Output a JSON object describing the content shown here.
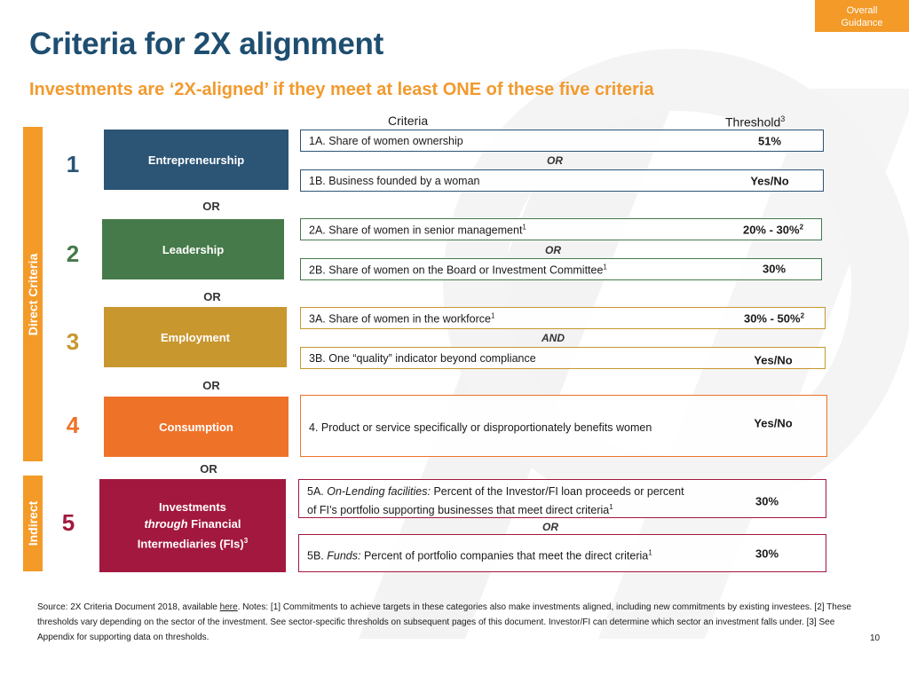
{
  "tag": {
    "line1": "Overall",
    "line2": "Guidance"
  },
  "title": "Criteria for 2X alignment",
  "subtitle": "Investments are ‘2X-aligned’ if they meet at least ONE of these five criteria",
  "headers": {
    "criteria": "Criteria",
    "threshold": "Threshold",
    "threshold_note": "3"
  },
  "side_labels": {
    "direct": "Direct Criteria",
    "indirect": "Indirect"
  },
  "or_word": "OR",
  "colors": {
    "navy": "#2b5475",
    "green": "#467a4a",
    "gold": "#c8972e",
    "orange": "#ef7229",
    "crimson": "#a3183e",
    "side": "#f39a28"
  },
  "rows": [
    {
      "number": "1",
      "category": "Entrepreneurship",
      "criteria": [
        {
          "text": "1A. Share of women ownership",
          "threshold": "51%"
        },
        {
          "text": "1B. Business founded by a woman",
          "threshold": "Yes/No"
        }
      ],
      "connector": "OR"
    },
    {
      "number": "2",
      "category": "Leadership",
      "criteria": [
        {
          "text": "2A. Share of women in senior management",
          "note": "1",
          "threshold": "20% - 30%",
          "threshold_note": "2"
        },
        {
          "text": "2B. Share of women on the Board or Investment Committee",
          "note": "1",
          "threshold": "30%"
        }
      ],
      "connector": "OR"
    },
    {
      "number": "3",
      "category": "Employment",
      "criteria": [
        {
          "text": "3A. Share of women in the workforce",
          "note": "1",
          "threshold": "30% - 50%",
          "threshold_note": "2"
        },
        {
          "text": "3B. One “quality” indicator beyond compliance",
          "threshold": "Yes/No"
        }
      ],
      "connector": "AND"
    },
    {
      "number": "4",
      "category": "Consumption",
      "criteria": [
        {
          "text": "4. Product or service specifically or disproportionately benefits women",
          "threshold": "Yes/No"
        }
      ]
    },
    {
      "number": "5",
      "category_line1": "Investments",
      "category_through": "through",
      "category_line2": " Financial",
      "category_line3": "Intermediaries (FIs)",
      "category_note": "3",
      "criteria": [
        {
          "prefix": "5A. ",
          "italic": "On-Lending facilities:",
          "line1": " Percent of the Investor/FI loan proceeds or percent",
          "line2": "of FI’s portfolio supporting businesses that meet direct criteria",
          "note": "1",
          "threshold": "30%"
        },
        {
          "prefix": "5B. ",
          "italic": "Funds:",
          "text": " Percent of portfolio companies that meet the direct criteria",
          "note": "1",
          "threshold": "30%"
        }
      ],
      "connector": "OR"
    }
  ],
  "footnote": {
    "part1": "Source: 2X Criteria Document 2018, available ",
    "link": "here",
    "part2": ". Notes: [1] Commitments to achieve targets in these categories also make investments aligned, including new commitments by existing investees. [2] These thresholds vary depending on the sector of the investment. See sector-specific thresholds on subsequent pages of this document. Investor/FI can determine which sector an investment falls under. [3] See Appendix for supporting data on thresholds."
  },
  "page_number": "10"
}
